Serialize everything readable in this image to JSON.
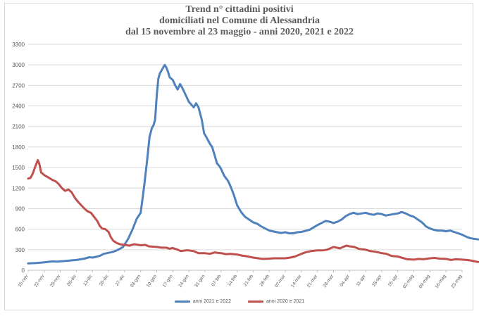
{
  "chart_data": {
    "type": "line",
    "title_lines": [
      "Trend n° cittadini positivi",
      "domiciliati nel Comune di Alessandria",
      "dal 15 novembre al 23 maggio - anni 2020, 2021 e 2022"
    ],
    "xlabel": "",
    "ylabel": "",
    "ylim": [
      0,
      3300
    ],
    "yticks": [
      0,
      300,
      600,
      900,
      1200,
      1500,
      1800,
      2100,
      2400,
      2700,
      3000,
      3300
    ],
    "grid": true,
    "legend_position": "bottom",
    "categories": [
      "15-nov",
      "22-nov",
      "29-nov",
      "06-dic",
      "13-dic",
      "20-dic",
      "27-dic",
      "03-gen",
      "10-gen",
      "17-gen",
      "24-gen",
      "31-gen",
      "07-feb",
      "14-feb",
      "21-feb",
      "28-feb",
      "07-mar",
      "14-mar",
      "21-mar",
      "28-mar",
      "04-apr",
      "11-apr",
      "18-apr",
      "25-apr",
      "02-mag",
      "09-mag",
      "16-mag",
      "23-mag"
    ],
    "series": [
      {
        "name": "anni 2021 e 2022",
        "color": "#4f81bd",
        "values": [
          [
            0,
            100
          ],
          [
            0.5,
            105
          ],
          [
            1,
            115
          ],
          [
            1.5,
            130
          ],
          [
            1.8,
            125
          ],
          [
            2,
            130
          ],
          [
            2.5,
            140
          ],
          [
            3,
            150
          ],
          [
            3.5,
            170
          ],
          [
            3.8,
            190
          ],
          [
            4,
            185
          ],
          [
            4.3,
            200
          ],
          [
            4.5,
            215
          ],
          [
            4.7,
            240
          ],
          [
            5,
            255
          ],
          [
            5.3,
            270
          ],
          [
            5.6,
            300
          ],
          [
            5.9,
            340
          ],
          [
            6.2,
            450
          ],
          [
            6.5,
            600
          ],
          [
            6.75,
            750
          ],
          [
            7,
            840
          ],
          [
            7.2,
            1200
          ],
          [
            7.4,
            1600
          ],
          [
            7.55,
            1950
          ],
          [
            7.7,
            2080
          ],
          [
            7.8,
            2120
          ],
          [
            7.9,
            2200
          ],
          [
            8,
            2550
          ],
          [
            8.1,
            2800
          ],
          [
            8.2,
            2880
          ],
          [
            8.3,
            2920
          ],
          [
            8.4,
            2960
          ],
          [
            8.5,
            3000
          ],
          [
            8.6,
            2960
          ],
          [
            8.7,
            2900
          ],
          [
            8.8,
            2820
          ],
          [
            9,
            2780
          ],
          [
            9.15,
            2700
          ],
          [
            9.3,
            2640
          ],
          [
            9.45,
            2720
          ],
          [
            9.6,
            2660
          ],
          [
            9.8,
            2560
          ],
          [
            10,
            2460
          ],
          [
            10.15,
            2420
          ],
          [
            10.3,
            2380
          ],
          [
            10.45,
            2440
          ],
          [
            10.6,
            2380
          ],
          [
            10.8,
            2200
          ],
          [
            10.95,
            2000
          ],
          [
            11.1,
            1940
          ],
          [
            11.3,
            1850
          ],
          [
            11.45,
            1800
          ],
          [
            11.6,
            1680
          ],
          [
            11.75,
            1560
          ],
          [
            11.9,
            1520
          ],
          [
            12,
            1480
          ],
          [
            12.2,
            1380
          ],
          [
            12.45,
            1300
          ],
          [
            12.6,
            1220
          ],
          [
            12.8,
            1100
          ],
          [
            13,
            950
          ],
          [
            13.25,
            850
          ],
          [
            13.5,
            780
          ],
          [
            13.75,
            740
          ],
          [
            14,
            700
          ],
          [
            14.25,
            680
          ],
          [
            14.5,
            640
          ],
          [
            14.75,
            610
          ],
          [
            15,
            580
          ],
          [
            15.5,
            555
          ],
          [
            15.75,
            545
          ],
          [
            16,
            555
          ],
          [
            16.25,
            540
          ],
          [
            16.5,
            540
          ],
          [
            16.75,
            555
          ],
          [
            17,
            560
          ],
          [
            17.5,
            590
          ],
          [
            18,
            660
          ],
          [
            18.25,
            690
          ],
          [
            18.5,
            720
          ],
          [
            18.75,
            710
          ],
          [
            19,
            690
          ],
          [
            19.25,
            710
          ],
          [
            19.5,
            740
          ],
          [
            19.75,
            790
          ],
          [
            20,
            820
          ],
          [
            20.25,
            840
          ],
          [
            20.5,
            820
          ],
          [
            20.75,
            830
          ],
          [
            21,
            840
          ],
          [
            21.25,
            820
          ],
          [
            21.5,
            810
          ],
          [
            21.75,
            830
          ],
          [
            22,
            820
          ],
          [
            22.25,
            800
          ],
          [
            22.5,
            810
          ],
          [
            22.75,
            820
          ],
          [
            23,
            830
          ],
          [
            23.25,
            850
          ],
          [
            23.5,
            830
          ],
          [
            23.75,
            800
          ],
          [
            24,
            780
          ],
          [
            24.25,
            740
          ],
          [
            24.5,
            700
          ],
          [
            24.75,
            640
          ],
          [
            25,
            610
          ],
          [
            25.25,
            590
          ],
          [
            25.5,
            580
          ],
          [
            25.75,
            580
          ],
          [
            26,
            570
          ],
          [
            26.25,
            580
          ],
          [
            26.5,
            560
          ],
          [
            26.75,
            540
          ],
          [
            27,
            520
          ],
          [
            27.25,
            490
          ],
          [
            27.5,
            470
          ],
          [
            27.75,
            460
          ],
          [
            28,
            450
          ]
        ]
      },
      {
        "name": "anni 2020 e 2021",
        "color": "#c0504d",
        "values": [
          [
            0,
            1340
          ],
          [
            0.15,
            1350
          ],
          [
            0.3,
            1420
          ],
          [
            0.45,
            1520
          ],
          [
            0.6,
            1610
          ],
          [
            0.7,
            1550
          ],
          [
            0.8,
            1430
          ],
          [
            1,
            1390
          ],
          [
            1.3,
            1350
          ],
          [
            1.5,
            1320
          ],
          [
            1.7,
            1300
          ],
          [
            1.9,
            1260
          ],
          [
            2.1,
            1200
          ],
          [
            2.3,
            1160
          ],
          [
            2.5,
            1180
          ],
          [
            2.7,
            1140
          ],
          [
            2.9,
            1060
          ],
          [
            3.1,
            1000
          ],
          [
            3.3,
            950
          ],
          [
            3.5,
            900
          ],
          [
            3.7,
            860
          ],
          [
            3.9,
            840
          ],
          [
            4.1,
            780
          ],
          [
            4.3,
            720
          ],
          [
            4.45,
            650
          ],
          [
            4.6,
            610
          ],
          [
            4.8,
            600
          ],
          [
            5,
            560
          ],
          [
            5.15,
            480
          ],
          [
            5.3,
            430
          ],
          [
            5.5,
            400
          ],
          [
            5.7,
            380
          ],
          [
            6,
            370
          ],
          [
            6.3,
            360
          ],
          [
            6.6,
            380
          ],
          [
            7,
            365
          ],
          [
            7.3,
            370
          ],
          [
            7.5,
            350
          ],
          [
            8,
            340
          ],
          [
            8.3,
            330
          ],
          [
            8.6,
            330
          ],
          [
            8.8,
            315
          ],
          [
            9,
            325
          ],
          [
            9.3,
            300
          ],
          [
            9.5,
            280
          ],
          [
            9.8,
            290
          ],
          [
            10,
            290
          ],
          [
            10.3,
            280
          ],
          [
            10.6,
            250
          ],
          [
            11,
            250
          ],
          [
            11.3,
            240
          ],
          [
            11.6,
            260
          ],
          [
            12,
            250
          ],
          [
            12.3,
            235
          ],
          [
            12.6,
            240
          ],
          [
            13,
            230
          ],
          [
            13.3,
            215
          ],
          [
            13.6,
            205
          ],
          [
            14,
            185
          ],
          [
            14.3,
            175
          ],
          [
            14.6,
            165
          ],
          [
            15,
            170
          ],
          [
            15.3,
            175
          ],
          [
            15.6,
            175
          ],
          [
            16,
            175
          ],
          [
            16.3,
            185
          ],
          [
            16.6,
            200
          ],
          [
            16.8,
            220
          ],
          [
            17,
            240
          ],
          [
            17.3,
            265
          ],
          [
            17.6,
            280
          ],
          [
            18,
            290
          ],
          [
            18.3,
            290
          ],
          [
            18.6,
            300
          ],
          [
            18.8,
            320
          ],
          [
            19,
            340
          ],
          [
            19.2,
            330
          ],
          [
            19.4,
            320
          ],
          [
            19.6,
            340
          ],
          [
            19.8,
            360
          ],
          [
            20,
            350
          ],
          [
            20.3,
            340
          ],
          [
            20.6,
            310
          ],
          [
            21,
            300
          ],
          [
            21.3,
            280
          ],
          [
            21.6,
            270
          ],
          [
            22,
            250
          ],
          [
            22.3,
            240
          ],
          [
            22.6,
            210
          ],
          [
            23,
            200
          ],
          [
            23.3,
            180
          ],
          [
            23.6,
            160
          ],
          [
            24,
            155
          ],
          [
            24.3,
            165
          ],
          [
            24.6,
            160
          ],
          [
            25,
            175
          ],
          [
            25.3,
            180
          ],
          [
            25.6,
            170
          ],
          [
            26,
            165
          ],
          [
            26.3,
            150
          ],
          [
            26.6,
            160
          ],
          [
            27,
            155
          ],
          [
            27.3,
            150
          ],
          [
            27.6,
            140
          ],
          [
            27.8,
            130
          ],
          [
            28,
            120
          ]
        ]
      }
    ]
  }
}
